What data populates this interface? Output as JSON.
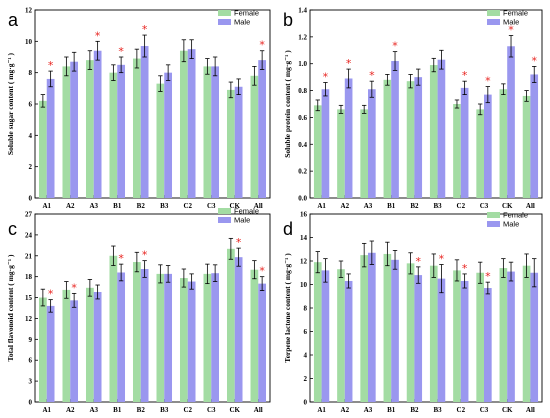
{
  "colors": {
    "female": "#a3dca3",
    "male": "#9a97ef",
    "star": "#e8231f",
    "axis": "#000000"
  },
  "chart_data": [
    {
      "type": "bar",
      "panel_label": "a",
      "categories": [
        "A1",
        "A2",
        "A3",
        "B1",
        "B2",
        "B3",
        "C2",
        "C3",
        "CK",
        "All"
      ],
      "ylabel": "Soluble sugar content ( mg·g⁻¹ )",
      "ylim": [
        0,
        12
      ],
      "yticks": [
        "0",
        "2",
        "4",
        "6",
        "8",
        "10",
        "12"
      ],
      "legend": [
        "Female",
        "Male"
      ],
      "series": [
        {
          "name": "Female",
          "values": [
            6.2,
            8.4,
            8.8,
            8.0,
            8.9,
            7.3,
            9.4,
            8.4,
            6.9,
            7.8
          ],
          "errors": [
            0.4,
            0.6,
            0.6,
            0.5,
            0.6,
            0.5,
            0.7,
            0.5,
            0.5,
            0.6
          ]
        },
        {
          "name": "Male",
          "values": [
            7.6,
            8.7,
            9.4,
            8.5,
            9.7,
            8.0,
            9.5,
            8.4,
            7.1,
            8.8
          ],
          "errors": [
            0.5,
            0.6,
            0.6,
            0.5,
            0.7,
            0.5,
            0.6,
            0.6,
            0.5,
            0.6
          ]
        }
      ],
      "significant": [
        true,
        false,
        true,
        true,
        true,
        false,
        false,
        false,
        false,
        true
      ]
    },
    {
      "type": "bar",
      "panel_label": "b",
      "categories": [
        "A1",
        "A2",
        "A3",
        "B1",
        "B2",
        "B3",
        "C2",
        "C3",
        "CK",
        "All"
      ],
      "ylabel": "Soluble protein content ( mg·g⁻¹ )",
      "ylim": [
        0,
        1.4
      ],
      "yticks": [
        "0.0",
        "0.2",
        "0.4",
        "0.6",
        "0.8",
        "1.0",
        "1.2",
        "1.4"
      ],
      "legend": [
        "Female",
        "Male"
      ],
      "series": [
        {
          "name": "Female",
          "values": [
            0.69,
            0.66,
            0.66,
            0.88,
            0.87,
            0.99,
            0.7,
            0.66,
            0.81,
            0.76
          ],
          "errors": [
            0.04,
            0.03,
            0.03,
            0.04,
            0.05,
            0.05,
            0.03,
            0.04,
            0.04,
            0.04
          ]
        },
        {
          "name": "Male",
          "values": [
            0.81,
            0.89,
            0.81,
            1.02,
            0.9,
            1.03,
            0.82,
            0.77,
            1.13,
            0.92
          ],
          "errors": [
            0.05,
            0.07,
            0.06,
            0.07,
            0.06,
            0.07,
            0.05,
            0.06,
            0.08,
            0.06
          ]
        }
      ],
      "significant": [
        true,
        true,
        true,
        true,
        false,
        false,
        true,
        true,
        true,
        true
      ]
    },
    {
      "type": "bar",
      "panel_label": "c",
      "categories": [
        "A1",
        "A2",
        "A3",
        "B1",
        "B2",
        "B3",
        "C2",
        "C3",
        "CK",
        "All"
      ],
      "ylabel": "Total flavonoid content ( mg·g⁻¹ )",
      "ylim": [
        0,
        27
      ],
      "yticks": [
        "0",
        "3",
        "6",
        "9",
        "12",
        "15",
        "18",
        "21",
        "24",
        "27"
      ],
      "legend": [
        "Female",
        "Male"
      ],
      "series": [
        {
          "name": "Female",
          "values": [
            15.0,
            16.1,
            16.4,
            21.0,
            20.1,
            18.4,
            17.8,
            18.4,
            22.0,
            19.0
          ],
          "errors": [
            1.2,
            1.2,
            1.2,
            1.4,
            1.4,
            1.3,
            1.3,
            1.4,
            1.5,
            1.3
          ]
        },
        {
          "name": "Male",
          "values": [
            13.8,
            14.6,
            15.8,
            18.6,
            19.1,
            18.4,
            17.3,
            18.5,
            20.8,
            17.0
          ],
          "errors": [
            0.9,
            1.0,
            1.0,
            1.2,
            1.2,
            1.2,
            1.1,
            1.2,
            1.3,
            1.0
          ]
        }
      ],
      "significant": [
        true,
        true,
        false,
        true,
        true,
        false,
        false,
        false,
        true,
        true
      ]
    },
    {
      "type": "bar",
      "panel_label": "d",
      "categories": [
        "A1",
        "A2",
        "A3",
        "B1",
        "B2",
        "B3",
        "C2",
        "C3",
        "CK",
        "All"
      ],
      "ylabel": "Terpene lactone content ( mg·g⁻¹ )",
      "ylim": [
        0,
        16
      ],
      "yticks": [
        "0",
        "2",
        "4",
        "6",
        "8",
        "10",
        "12",
        "14",
        "16"
      ],
      "legend": [
        "Female",
        "Male"
      ],
      "series": [
        {
          "name": "Female",
          "values": [
            11.9,
            11.3,
            12.5,
            12.6,
            11.8,
            11.6,
            11.2,
            11.0,
            11.4,
            11.6
          ],
          "errors": [
            0.9,
            0.7,
            1.0,
            1.0,
            0.9,
            1.0,
            0.9,
            0.9,
            0.8,
            1.0
          ]
        },
        {
          "name": "Male",
          "values": [
            11.2,
            10.3,
            12.7,
            12.1,
            10.8,
            10.5,
            10.3,
            9.7,
            11.1,
            11.0
          ],
          "errors": [
            1.0,
            0.6,
            1.0,
            0.8,
            0.7,
            1.2,
            0.6,
            0.5,
            0.8,
            1.2
          ]
        }
      ],
      "significant": [
        false,
        false,
        false,
        false,
        true,
        true,
        true,
        true,
        false,
        false
      ]
    }
  ]
}
